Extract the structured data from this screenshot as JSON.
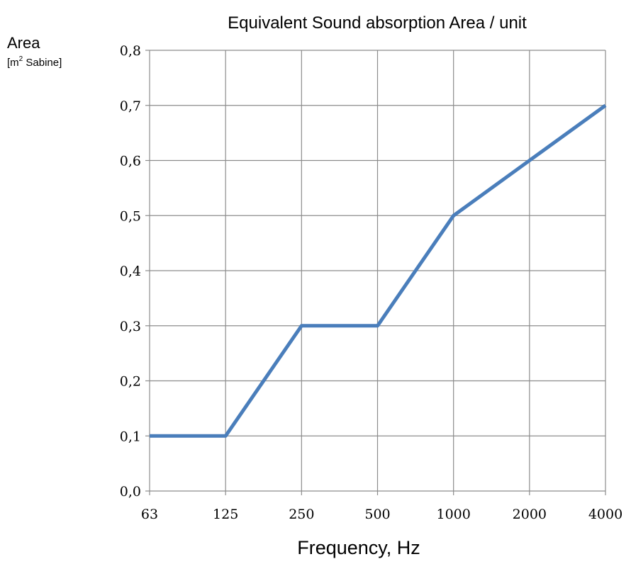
{
  "chart_data": {
    "type": "line",
    "title": "Equivalent Sound absorption Area / unit",
    "xlabel": "Frequency, Hz",
    "ylabel": "Area",
    "ylabel_unit_prefix": "[m",
    "ylabel_unit_sup": "2",
    "ylabel_unit_suffix": " Sabine]",
    "categories": [
      "63",
      "125",
      "250",
      "500",
      "1000",
      "2000",
      "4000"
    ],
    "series": [
      {
        "values": [
          0.1,
          0.1,
          0.3,
          0.3,
          0.5,
          0.6,
          0.7
        ],
        "color": "#4a7ebb"
      }
    ],
    "ylim": [
      0,
      0.8
    ],
    "yticks": [
      "0,0",
      "0,1",
      "0,2",
      "0,3",
      "0,4",
      "0,5",
      "0,6",
      "0,7",
      "0,8"
    ],
    "grid": true,
    "legend": "none"
  }
}
